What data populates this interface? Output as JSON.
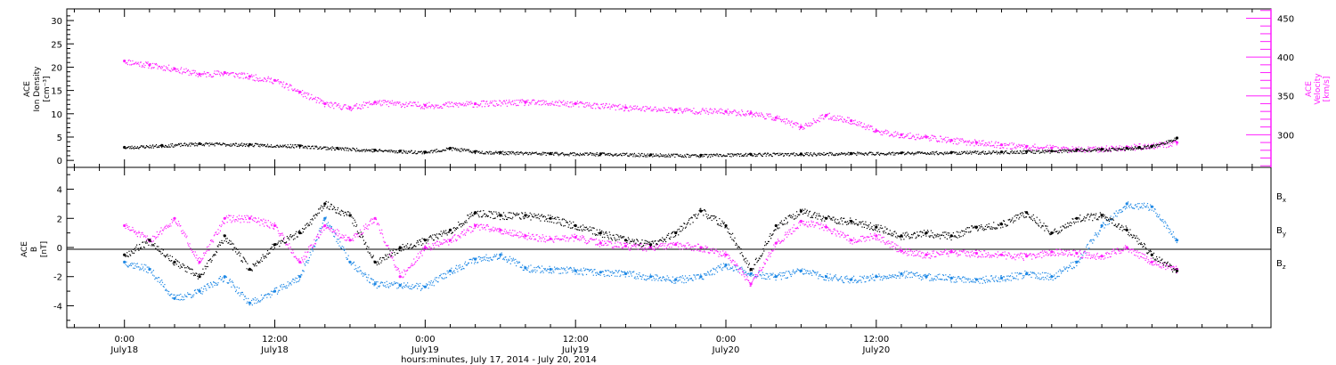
{
  "colors": {
    "density": "#000000",
    "velocity": "#ff20ff",
    "bx": "#000000",
    "by": "#1e88e5",
    "bz": "#ff20ff",
    "axis": "#000000"
  },
  "chart_data": [
    {
      "type": "scatter",
      "panel": "top",
      "left_axis_title": [
        "ACE",
        "Ion Density",
        "[cm⁻³]"
      ],
      "right_axis_title": [
        "ACE",
        "Velocity",
        "[km/s]"
      ],
      "ylim_left": [
        -1.5,
        32.5
      ],
      "ylim_right": [
        258,
        462
      ],
      "yticks_left": [
        0,
        5,
        10,
        15,
        20,
        25,
        30
      ],
      "yticks_right": [
        300,
        350,
        400,
        450
      ],
      "series": [
        {
          "name": "Ion Density",
          "axis": "left",
          "color": "#000000",
          "x": [
            0,
            3,
            6,
            10,
            14,
            17,
            20,
            22,
            24,
            26,
            28,
            30,
            34,
            38,
            42,
            46,
            50,
            54,
            58,
            62,
            66,
            70,
            72,
            74,
            76,
            78,
            80,
            81,
            82,
            84
          ],
          "y": [
            2.8,
            3.2,
            3.6,
            3.4,
            3.1,
            2.6,
            2.2,
            2.0,
            1.8,
            2.6,
            1.9,
            1.7,
            1.5,
            1.4,
            1.2,
            1.1,
            1.3,
            1.4,
            1.5,
            1.6,
            1.7,
            1.8,
            1.9,
            2.0,
            2.3,
            2.4,
            2.6,
            2.8,
            3.0,
            4.8
          ]
        },
        {
          "name": "Velocity",
          "axis": "right",
          "color": "#ff20ff",
          "x": [
            0,
            2,
            4,
            6,
            8,
            10,
            12,
            14,
            16,
            18,
            20,
            24,
            28,
            32,
            36,
            40,
            44,
            48,
            50,
            52,
            54,
            56,
            58,
            60,
            62,
            64,
            66,
            68,
            70,
            72,
            74,
            76,
            78,
            80,
            82,
            84
          ],
          "y": [
            395,
            390,
            385,
            378,
            380,
            375,
            370,
            355,
            340,
            335,
            342,
            338,
            340,
            342,
            340,
            335,
            332,
            330,
            328,
            322,
            310,
            325,
            318,
            305,
            300,
            297,
            293,
            290,
            287,
            285,
            283,
            281,
            282,
            284,
            286,
            290
          ]
        }
      ]
    },
    {
      "type": "scatter",
      "panel": "bottom",
      "left_axis_title": [
        "ACE",
        "B",
        "[nT]"
      ],
      "ylim": [
        -5.5,
        5.5
      ],
      "yticks": [
        -4,
        -2,
        0,
        2,
        4
      ],
      "series": [
        {
          "name": "Bx",
          "label_main": "B",
          "label_sub": "x",
          "color": "#000000",
          "x": [
            0,
            2,
            4,
            6,
            8,
            10,
            12,
            14,
            16,
            18,
            20,
            22,
            24,
            26,
            28,
            30,
            32,
            34,
            36,
            38,
            40,
            42,
            44,
            46,
            48,
            50,
            52,
            54,
            56,
            58,
            60,
            62,
            64,
            66,
            68,
            70,
            72,
            74,
            76,
            78,
            80,
            82,
            84
          ],
          "y": [
            -0.5,
            0.5,
            -1.0,
            -2.0,
            0.8,
            -1.5,
            0.2,
            1.0,
            3.0,
            2.2,
            -1.0,
            0.0,
            0.5,
            1.2,
            2.4,
            2.2,
            2.2,
            2.0,
            1.5,
            1.0,
            0.5,
            0.2,
            1.0,
            2.5,
            1.5,
            -1.5,
            1.5,
            2.5,
            2.0,
            1.8,
            1.4,
            0.8,
            1.0,
            0.8,
            1.4,
            1.6,
            2.4,
            1.0,
            2.0,
            2.2,
            1.2,
            -0.5,
            -1.6
          ]
        },
        {
          "name": "By",
          "label_main": "B",
          "label_sub": "y",
          "color": "#1e88e5",
          "x": [
            0,
            2,
            4,
            6,
            8,
            10,
            12,
            14,
            16,
            18,
            20,
            22,
            24,
            26,
            28,
            30,
            32,
            34,
            36,
            38,
            40,
            42,
            44,
            46,
            48,
            50,
            52,
            54,
            56,
            58,
            60,
            62,
            64,
            66,
            68,
            70,
            72,
            74,
            76,
            78,
            80,
            82,
            84
          ],
          "y": [
            -1.0,
            -1.5,
            -3.5,
            -3.0,
            -2.0,
            -3.8,
            -3.0,
            -2.0,
            2.0,
            -1.0,
            -2.5,
            -2.6,
            -2.7,
            -1.6,
            -0.8,
            -0.5,
            -1.4,
            -1.5,
            -1.6,
            -1.7,
            -1.8,
            -2.0,
            -2.2,
            -2.0,
            -1.2,
            -1.8,
            -2.0,
            -1.6,
            -2.0,
            -2.2,
            -2.0,
            -1.8,
            -2.0,
            -2.1,
            -2.2,
            -2.1,
            -1.8,
            -2.0,
            -1.0,
            1.5,
            3.0,
            2.8,
            0.5
          ]
        },
        {
          "name": "Bz",
          "label_main": "B",
          "label_sub": "z",
          "color": "#ff20ff",
          "x": [
            0,
            2,
            4,
            6,
            8,
            10,
            12,
            14,
            16,
            18,
            20,
            22,
            24,
            26,
            28,
            30,
            32,
            34,
            36,
            38,
            40,
            42,
            44,
            46,
            48,
            50,
            52,
            54,
            56,
            58,
            60,
            62,
            64,
            66,
            68,
            70,
            72,
            74,
            76,
            78,
            80,
            82,
            84
          ],
          "y": [
            1.5,
            0.5,
            2.0,
            -1.0,
            2.0,
            2.0,
            1.5,
            -1.0,
            1.5,
            0.5,
            2.0,
            -2.0,
            0.0,
            0.5,
            1.5,
            1.2,
            0.8,
            0.6,
            0.7,
            0.3,
            0.1,
            0.0,
            0.2,
            0.0,
            -0.5,
            -2.5,
            0.3,
            1.8,
            1.4,
            0.5,
            0.8,
            -0.2,
            -0.5,
            -0.3,
            -0.4,
            -0.5,
            -0.6,
            -0.3,
            -0.4,
            -0.6,
            0.0,
            -1.0,
            -1.5
          ]
        }
      ]
    }
  ],
  "time_axis": {
    "xlim": [
      -4.6,
      91.5
    ],
    "major_ticks": [
      {
        "t": 0,
        "time": "0:00",
        "date": "July18"
      },
      {
        "t": 12,
        "time": "12:00",
        "date": "July18"
      },
      {
        "t": 24,
        "time": "0:00",
        "date": "July19"
      },
      {
        "t": 36,
        "time": "12:00",
        "date": "July19"
      },
      {
        "t": 48,
        "time": "0:00",
        "date": "July20"
      },
      {
        "t": 60,
        "time": "12:00",
        "date": "July20"
      }
    ],
    "minor_step": 2,
    "title": "hours:minutes, July 17, 2014 - July 20, 2014"
  }
}
